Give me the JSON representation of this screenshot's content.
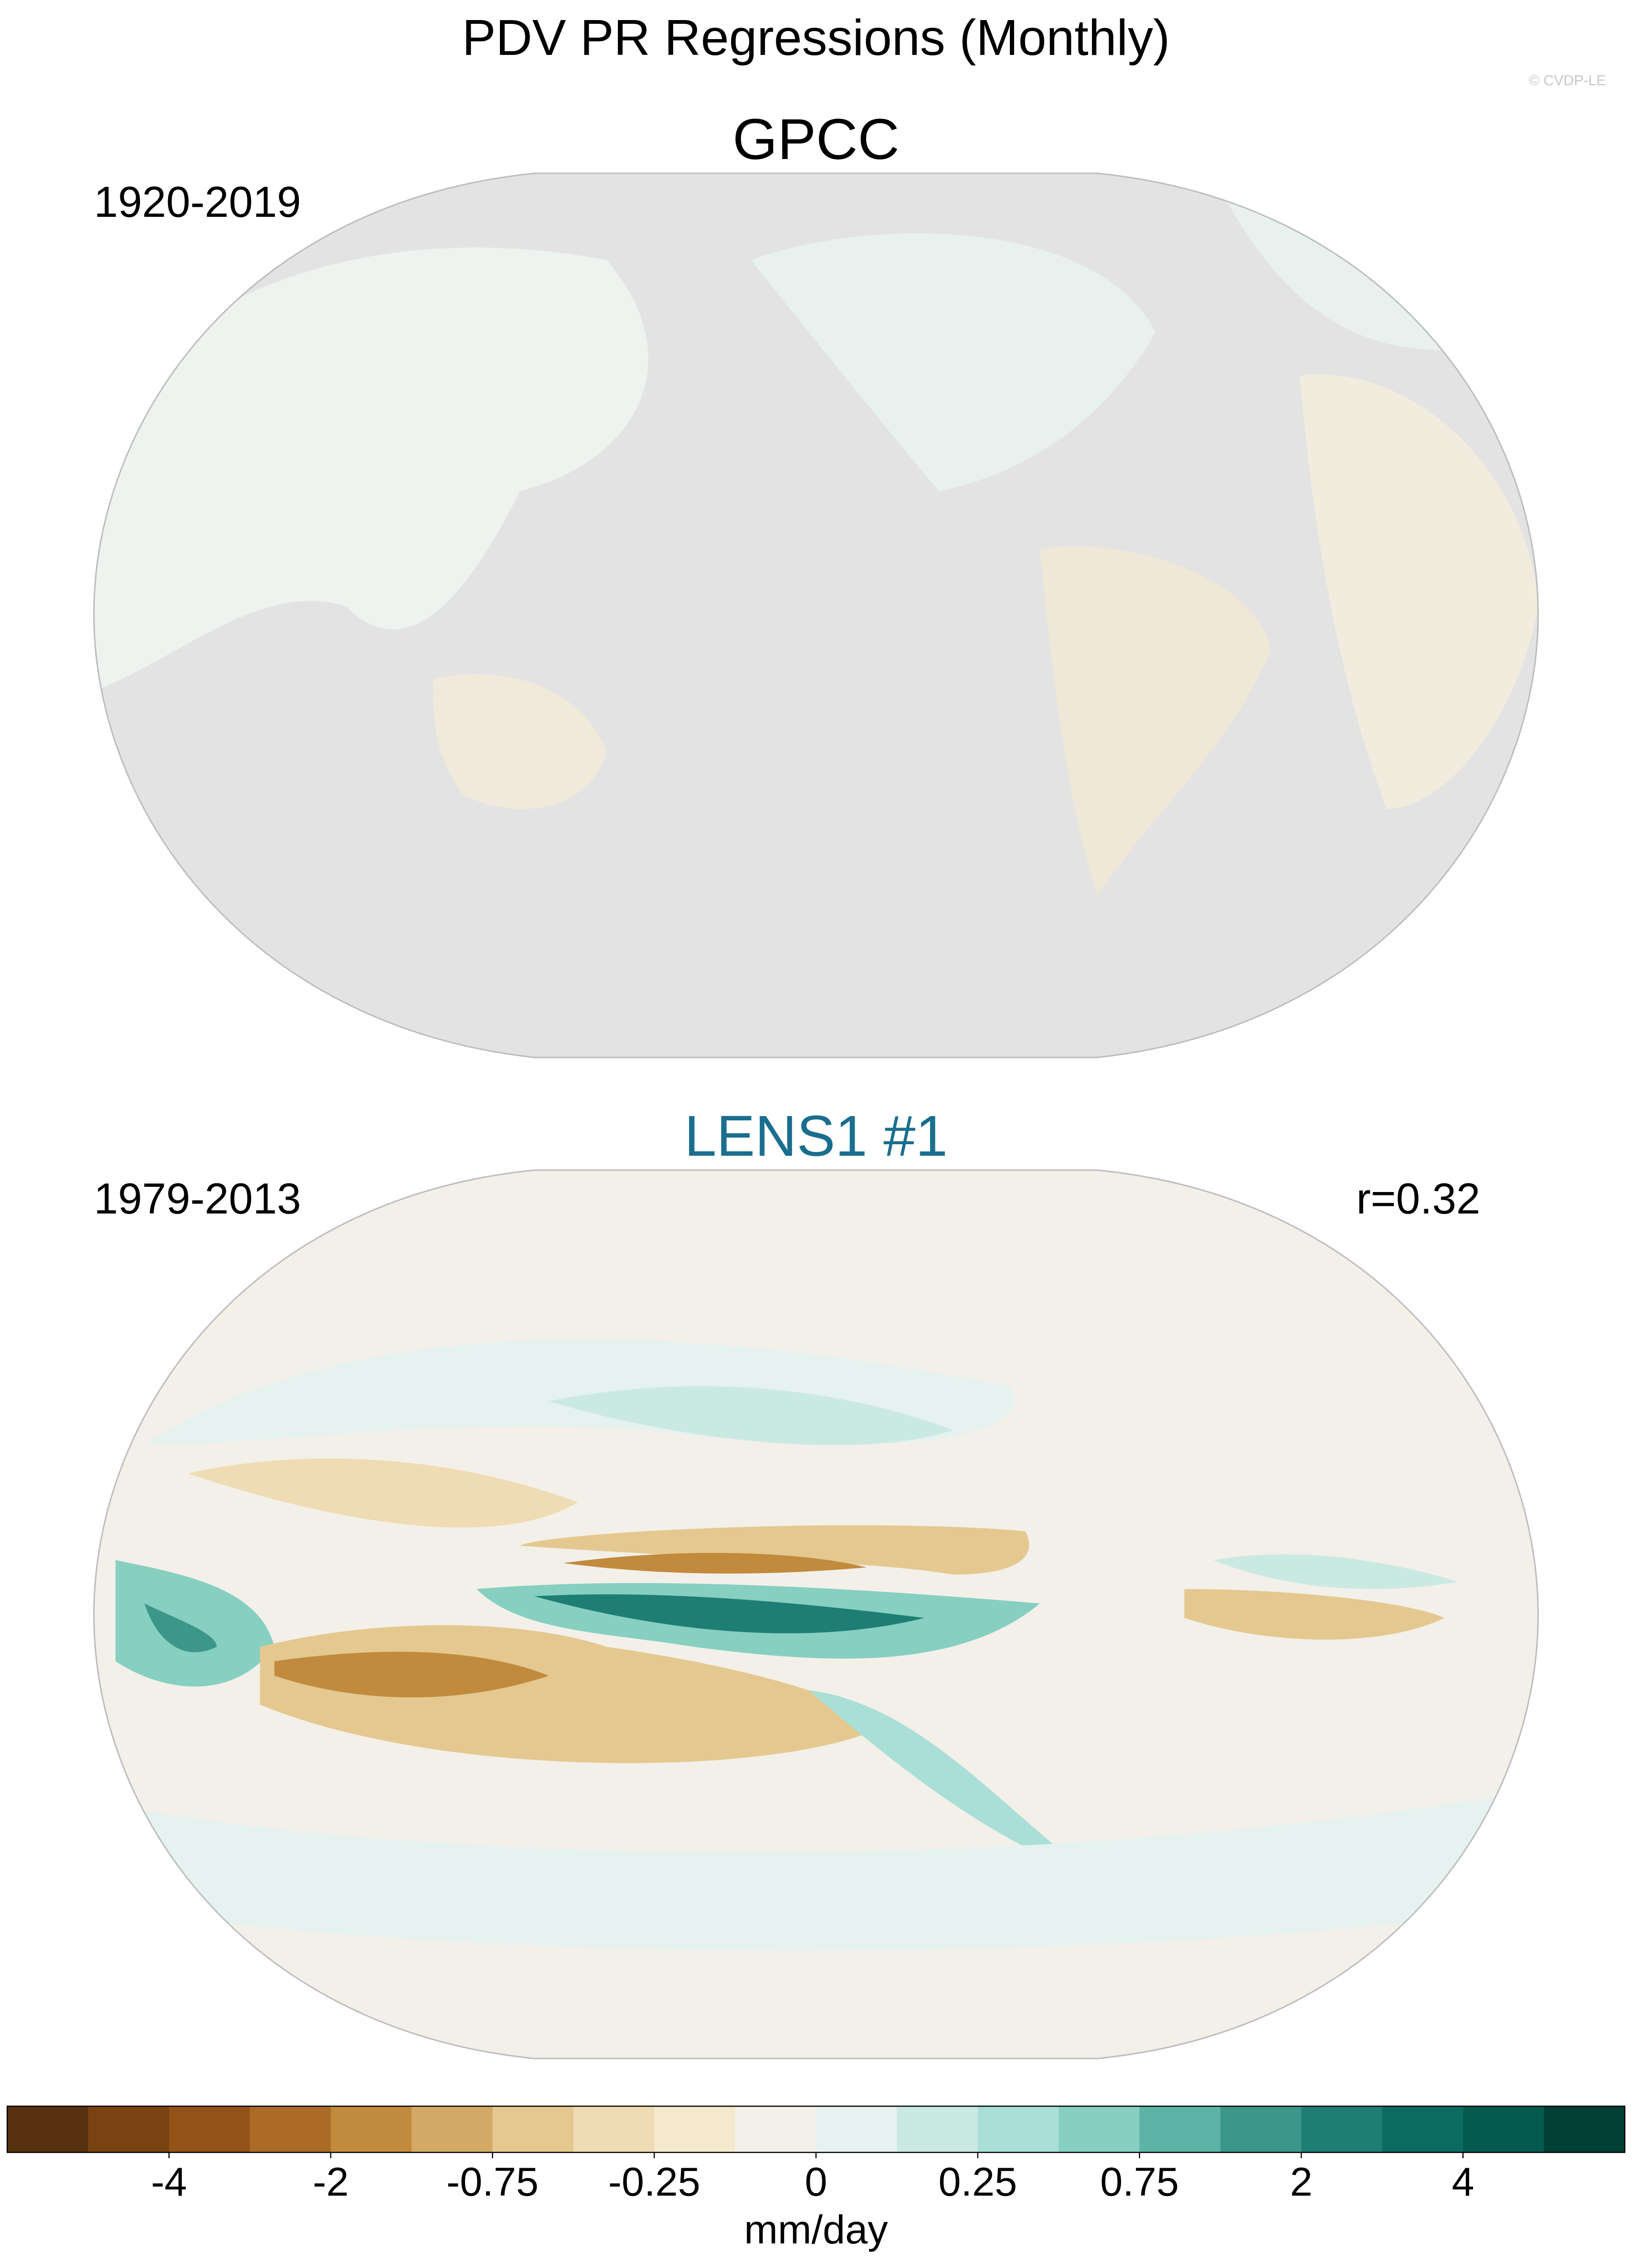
{
  "title": "PDV PR Regressions (Monthly)",
  "credit": "© CVDP-LE",
  "panels": [
    {
      "title": "GPCC",
      "period": "1920-2019"
    },
    {
      "title": "LENS1 #1",
      "period": "1979-2013",
      "correlation": "r=0.32"
    }
  ],
  "colorbar": {
    "colors": [
      "#583210",
      "#784310",
      "#935218",
      "#ac6a27",
      "#c18a3d",
      "#d3a965",
      "#e4c88f",
      "#efdcb4",
      "#f4e9cd",
      "#f3f0e9",
      "#e6f2ef",
      "#cbe9e3",
      "#a9dfd6",
      "#86cfc1",
      "#5db3a5",
      "#3c968a",
      "#1f7e74",
      "#0b6b60",
      "#045a4f",
      "#023f36"
    ],
    "ticks": [
      -4,
      -2,
      -0.75,
      -0.25,
      0,
      0.25,
      0.75,
      2,
      4
    ],
    "unit": "mm/day"
  }
}
